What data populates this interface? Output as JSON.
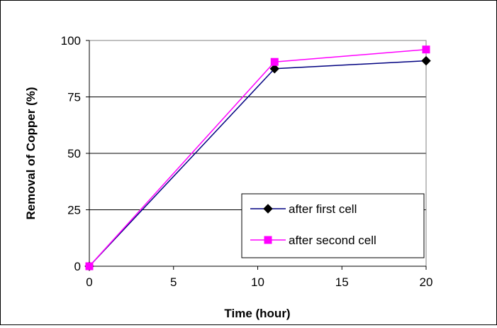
{
  "chart_data": {
    "type": "line",
    "title": "",
    "xlabel": "Time (hour)",
    "ylabel": "Removal of  Copper (%)",
    "xlim": [
      0,
      20
    ],
    "ylim": [
      0,
      100
    ],
    "xticks": [
      "0",
      "5",
      "10",
      "15",
      "20"
    ],
    "yticks": [
      "0",
      "25",
      "50",
      "75",
      "100"
    ],
    "grid": "horizontal",
    "legend_position": "bottom-right",
    "series": [
      {
        "name": "after first cell",
        "color": "#000080",
        "marker": "diamond",
        "marker_color": "#000000",
        "x": [
          0,
          11,
          20
        ],
        "y": [
          0,
          87.5,
          91
        ]
      },
      {
        "name": "after second cell",
        "color": "#ff00ff",
        "marker": "square",
        "marker_color": "#ff00ff",
        "x": [
          0,
          11,
          20
        ],
        "y": [
          0,
          90.5,
          96
        ]
      }
    ]
  }
}
